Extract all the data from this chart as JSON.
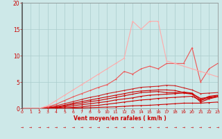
{
  "xlabel": "Vent moyen/en rafales ( km/h )",
  "xlim": [
    0,
    23
  ],
  "ylim": [
    0,
    20
  ],
  "xticks": [
    0,
    1,
    2,
    3,
    4,
    5,
    6,
    7,
    8,
    9,
    10,
    11,
    12,
    13,
    14,
    15,
    16,
    17,
    18,
    19,
    20,
    21,
    22,
    23
  ],
  "yticks": [
    0,
    5,
    10,
    15,
    20
  ],
  "bg_color": "#cde8e8",
  "grid_color": "#aacccc",
  "series": [
    {
      "x": [
        0,
        1,
        2,
        3,
        4,
        5,
        6,
        7,
        8,
        9,
        10,
        11,
        12,
        13,
        14,
        15,
        16,
        17,
        18,
        19,
        20,
        21,
        22,
        23
      ],
      "y": [
        0,
        0,
        0,
        0,
        0,
        0,
        0.05,
        0.1,
        0.15,
        0.2,
        0.25,
        0.3,
        0.4,
        0.5,
        0.55,
        0.6,
        0.7,
        0.8,
        0.9,
        1.0,
        1.0,
        1.0,
        1.1,
        1.2
      ],
      "color": "#cc0000",
      "lw": 0.8,
      "marker": "+"
    },
    {
      "x": [
        0,
        1,
        2,
        3,
        4,
        5,
        6,
        7,
        8,
        9,
        10,
        11,
        12,
        13,
        14,
        15,
        16,
        17,
        18,
        19,
        20,
        21,
        22,
        23
      ],
      "y": [
        0,
        0,
        0,
        0,
        0.05,
        0.1,
        0.2,
        0.3,
        0.5,
        0.6,
        0.8,
        1.0,
        1.2,
        1.4,
        1.6,
        1.7,
        1.9,
        2.0,
        2.1,
        2.2,
        2.3,
        1.5,
        2.0,
        2.2
      ],
      "color": "#cc0000",
      "lw": 0.8,
      "marker": "+"
    },
    {
      "x": [
        0,
        1,
        2,
        3,
        4,
        5,
        6,
        7,
        8,
        9,
        10,
        11,
        12,
        13,
        14,
        15,
        16,
        17,
        18,
        19,
        20,
        21,
        22,
        23
      ],
      "y": [
        0,
        0,
        0,
        0,
        0.1,
        0.3,
        0.5,
        0.7,
        0.9,
        1.1,
        1.3,
        1.6,
        1.8,
        2.0,
        2.3,
        2.5,
        2.6,
        2.7,
        2.8,
        2.9,
        2.7,
        1.2,
        1.8,
        2.2
      ],
      "color": "#cc0000",
      "lw": 0.8,
      "marker": "+"
    },
    {
      "x": [
        0,
        1,
        2,
        3,
        4,
        5,
        6,
        7,
        8,
        9,
        10,
        11,
        12,
        13,
        14,
        15,
        16,
        17,
        18,
        19,
        20,
        21,
        22,
        23
      ],
      "y": [
        0,
        0,
        0,
        0.1,
        0.2,
        0.5,
        0.8,
        1.0,
        1.3,
        1.5,
        1.8,
        2.1,
        2.4,
        2.7,
        3.0,
        3.1,
        3.2,
        3.0,
        3.0,
        3.1,
        2.9,
        1.6,
        2.3,
        2.5
      ],
      "color": "#cc0000",
      "lw": 0.8,
      "marker": "+"
    },
    {
      "x": [
        0,
        1,
        2,
        3,
        4,
        5,
        6,
        7,
        8,
        9,
        10,
        11,
        12,
        13,
        14,
        15,
        16,
        17,
        18,
        19,
        20,
        21,
        22,
        23
      ],
      "y": [
        0,
        0,
        0,
        0.1,
        0.3,
        0.6,
        1.0,
        1.3,
        1.6,
        1.9,
        2.2,
        2.5,
        2.8,
        3.1,
        3.3,
        3.4,
        3.5,
        3.5,
        3.4,
        3.0,
        2.8,
        1.9,
        2.1,
        2.4
      ],
      "color": "#cc0000",
      "lw": 0.8,
      "marker": "+"
    },
    {
      "x": [
        0,
        1,
        2,
        3,
        4,
        5,
        6,
        7,
        8,
        9,
        10,
        11,
        12,
        13,
        14,
        15,
        16,
        17,
        18,
        19,
        20,
        21,
        22,
        23
      ],
      "y": [
        0,
        0,
        0,
        0.2,
        0.5,
        0.9,
        1.3,
        1.7,
        2.1,
        2.4,
        2.8,
        3.1,
        3.4,
        3.7,
        4.0,
        4.1,
        4.2,
        4.4,
        4.3,
        3.9,
        3.5,
        2.8,
        2.9,
        3.0
      ],
      "color": "#cc2222",
      "lw": 0.8,
      "marker": "+"
    },
    {
      "x": [
        0,
        1,
        2,
        3,
        4,
        5,
        6,
        7,
        8,
        9,
        10,
        11,
        12,
        13,
        14,
        15,
        16,
        17,
        18,
        19,
        20,
        21,
        22,
        23
      ],
      "y": [
        0,
        0,
        0,
        0.3,
        0.8,
        1.5,
        2.2,
        2.8,
        3.4,
        4.0,
        4.5,
        5.5,
        7.0,
        6.5,
        7.5,
        8.0,
        7.5,
        8.5,
        8.5,
        8.5,
        11.5,
        5.0,
        7.5,
        8.5
      ],
      "color": "#ee5555",
      "lw": 0.8,
      "marker": "+"
    },
    {
      "x": [
        0,
        1,
        2,
        3,
        4,
        5,
        6,
        7,
        8,
        9,
        10,
        11,
        12,
        13,
        14,
        15,
        16,
        17,
        18,
        19,
        20,
        21,
        22,
        23
      ],
      "y": [
        0,
        0,
        0,
        0.5,
        1.5,
        2.5,
        3.5,
        4.5,
        5.5,
        6.5,
        7.5,
        8.5,
        9.5,
        16.5,
        15.0,
        16.5,
        16.5,
        9.0,
        8.5,
        8.0,
        7.5,
        7.0,
        6.5,
        6.0
      ],
      "color": "#ffaaaa",
      "lw": 0.8,
      "marker": "+"
    }
  ]
}
